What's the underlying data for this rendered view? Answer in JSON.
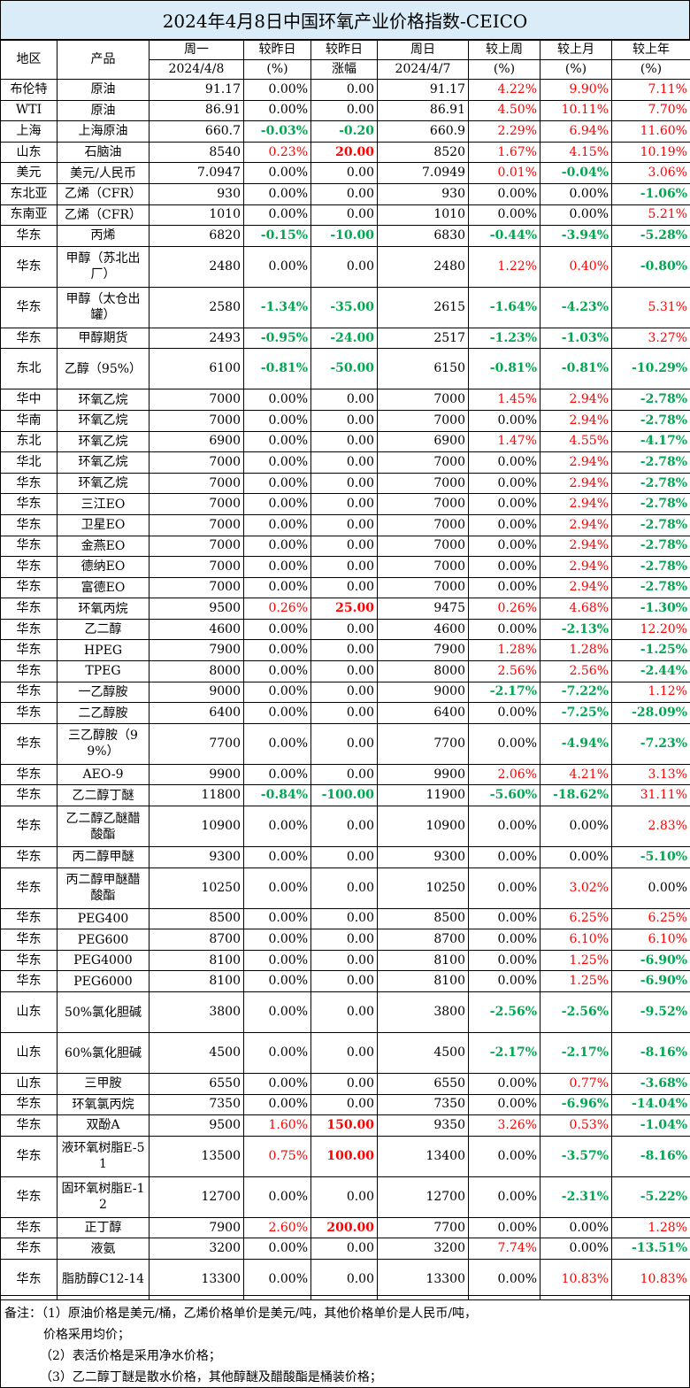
{
  "title": "2024年4月8日中国环氧产业价格指数-CEICO",
  "headers": {
    "region": "地区",
    "product": "产品",
    "mon_top": "周一",
    "mon_bottom": "2024/4/8",
    "chg_top": "较昨日",
    "chg_bottom": "(%)",
    "amt_top": "较昨日",
    "amt_bottom": "涨幅",
    "sun_top": "周日",
    "sun_bottom": "2024/4/7",
    "week_top": "较上周",
    "week_bottom": "(%)",
    "month_top": "较上月",
    "month_bottom": "(%)",
    "year_top": "较上年",
    "year_bottom": "(%)"
  },
  "colors": {
    "up": "#ff0000",
    "down": "#00a650",
    "title_bg": "#d9ecf7"
  },
  "rows": [
    {
      "region": "布伦特",
      "product": "原油",
      "mon": "91.17",
      "chg": "0.00%",
      "amt": "0.00",
      "sun": "91.17",
      "wk": "4.22%",
      "mo": "9.90%",
      "yr": "7.11%"
    },
    {
      "region": "WTI",
      "product": "原油",
      "mon": "86.91",
      "chg": "0.00%",
      "amt": "0.00",
      "sun": "86.91",
      "wk": "4.50%",
      "mo": "10.11%",
      "yr": "7.70%"
    },
    {
      "region": "上海",
      "product": "上海原油",
      "mon": "660.7",
      "chg": "-0.03%",
      "amt": "-0.20",
      "sun": "660.9",
      "wk": "2.29%",
      "mo": "6.94%",
      "yr": "11.60%"
    },
    {
      "region": "山东",
      "product": "石脑油",
      "mon": "8540",
      "chg": "0.23%",
      "amt": "20.00",
      "sun": "8520",
      "wk": "1.67%",
      "mo": "4.15%",
      "yr": "10.19%"
    },
    {
      "region": "美元",
      "product": "美元/人民币",
      "mon": "7.0947",
      "chg": "0.00%",
      "amt": "0.00",
      "sun": "7.0949",
      "wk": "0.01%",
      "mo": "-0.04%",
      "yr": "3.06%"
    },
    {
      "region": "东北亚",
      "product": "乙烯（CFR）",
      "mon": "930",
      "chg": "0.00%",
      "amt": "0.00",
      "sun": "930",
      "wk": "0.00%",
      "mo": "0.00%",
      "yr": "-1.06%"
    },
    {
      "region": "东南亚",
      "product": "乙烯（CFR）",
      "mon": "1010",
      "chg": "0.00%",
      "amt": "0.00",
      "sun": "1010",
      "wk": "0.00%",
      "mo": "0.00%",
      "yr": "5.21%"
    },
    {
      "region": "华东",
      "product": "丙烯",
      "mon": "6820",
      "chg": "-0.15%",
      "amt": "-10.00",
      "sun": "6830",
      "wk": "-0.44%",
      "mo": "-3.94%",
      "yr": "-5.28%"
    },
    {
      "region": "华东",
      "product": "甲醇（苏北出厂）",
      "mon": "2480",
      "chg": "0.00%",
      "amt": "0.00",
      "sun": "2480",
      "wk": "1.22%",
      "mo": "0.40%",
      "yr": "-0.80%"
    },
    {
      "region": "华东",
      "product": "甲醇（太仓出罐）",
      "mon": "2580",
      "chg": "-1.34%",
      "amt": "-35.00",
      "sun": "2615",
      "wk": "-1.64%",
      "mo": "-4.23%",
      "yr": "5.31%"
    },
    {
      "region": "华东",
      "product": "甲醇期货",
      "mon": "2493",
      "chg": "-0.95%",
      "amt": "-24.00",
      "sun": "2517",
      "wk": "-1.23%",
      "mo": "-1.03%",
      "yr": "3.27%"
    },
    {
      "region": "东北",
      "product": "乙醇（95%）",
      "mon": "6100",
      "chg": "-0.81%",
      "amt": "-50.00",
      "sun": "6150",
      "wk": "-0.81%",
      "mo": "-0.81%",
      "yr": "-10.29%"
    },
    {
      "region": "华中",
      "product": "环氧乙烷",
      "mon": "7000",
      "chg": "0.00%",
      "amt": "0.00",
      "sun": "7000",
      "wk": "1.45%",
      "mo": "2.94%",
      "yr": "-2.78%"
    },
    {
      "region": "华南",
      "product": "环氧乙烷",
      "mon": "7000",
      "chg": "0.00%",
      "amt": "0.00",
      "sun": "7000",
      "wk": "0.00%",
      "mo": "2.94%",
      "yr": "-2.78%"
    },
    {
      "region": "东北",
      "product": "环氧乙烷",
      "mon": "6900",
      "chg": "0.00%",
      "amt": "0.00",
      "sun": "6900",
      "wk": "1.47%",
      "mo": "4.55%",
      "yr": "-4.17%"
    },
    {
      "region": "华北",
      "product": "环氧乙烷",
      "mon": "7000",
      "chg": "0.00%",
      "amt": "0.00",
      "sun": "7000",
      "wk": "0.00%",
      "mo": "2.94%",
      "yr": "-2.78%"
    },
    {
      "region": "华东",
      "product": "环氧乙烷",
      "mon": "7000",
      "chg": "0.00%",
      "amt": "0.00",
      "sun": "7000",
      "wk": "0.00%",
      "mo": "2.94%",
      "yr": "-2.78%"
    },
    {
      "region": "华东",
      "product": "三江EO",
      "mon": "7000",
      "chg": "0.00%",
      "amt": "0.00",
      "sun": "7000",
      "wk": "0.00%",
      "mo": "2.94%",
      "yr": "-2.78%"
    },
    {
      "region": "华东",
      "product": "卫星EO",
      "mon": "7000",
      "chg": "0.00%",
      "amt": "0.00",
      "sun": "7000",
      "wk": "0.00%",
      "mo": "2.94%",
      "yr": "-2.78%"
    },
    {
      "region": "华东",
      "product": "金燕EO",
      "mon": "7000",
      "chg": "0.00%",
      "amt": "0.00",
      "sun": "7000",
      "wk": "0.00%",
      "mo": "2.94%",
      "yr": "-2.78%"
    },
    {
      "region": "华东",
      "product": "德纳EO",
      "mon": "7000",
      "chg": "0.00%",
      "amt": "0.00",
      "sun": "7000",
      "wk": "0.00%",
      "mo": "2.94%",
      "yr": "-2.78%"
    },
    {
      "region": "华东",
      "product": "富德EO",
      "mon": "7000",
      "chg": "0.00%",
      "amt": "0.00",
      "sun": "7000",
      "wk": "0.00%",
      "mo": "2.94%",
      "yr": "-2.78%"
    },
    {
      "region": "华东",
      "product": "环氧丙烷",
      "mon": "9500",
      "chg": "0.26%",
      "amt": "25.00",
      "sun": "9475",
      "wk": "0.26%",
      "mo": "4.68%",
      "yr": "-1.30%"
    },
    {
      "region": "华东",
      "product": "乙二醇",
      "mon": "4600",
      "chg": "0.00%",
      "amt": "0.00",
      "sun": "4600",
      "wk": "0.00%",
      "mo": "-2.13%",
      "yr": "12.20%"
    },
    {
      "region": "华东",
      "product": "HPEG",
      "mon": "7900",
      "chg": "0.00%",
      "amt": "0.00",
      "sun": "7900",
      "wk": "1.28%",
      "mo": "1.28%",
      "yr": "-1.25%"
    },
    {
      "region": "华东",
      "product": "TPEG",
      "mon": "8000",
      "chg": "0.00%",
      "amt": "0.00",
      "sun": "8000",
      "wk": "2.56%",
      "mo": "2.56%",
      "yr": "-2.44%"
    },
    {
      "region": "华东",
      "product": "一乙醇胺",
      "mon": "9000",
      "chg": "0.00%",
      "amt": "0.00",
      "sun": "9000",
      "wk": "-2.17%",
      "mo": "-7.22%",
      "yr": "1.12%"
    },
    {
      "region": "华东",
      "product": "二乙醇胺",
      "mon": "6400",
      "chg": "0.00%",
      "amt": "0.00",
      "sun": "6400",
      "wk": "0.00%",
      "mo": "-7.25%",
      "yr": "-28.09%"
    },
    {
      "region": "华东",
      "product": "三乙醇胺（99%）",
      "mon": "7700",
      "chg": "0.00%",
      "amt": "0.00",
      "sun": "7700",
      "wk": "0.00%",
      "mo": "-4.94%",
      "yr": "-7.23%"
    },
    {
      "region": "华东",
      "product": "AEO-9",
      "mon": "9900",
      "chg": "0.00%",
      "amt": "0.00",
      "sun": "9900",
      "wk": "2.06%",
      "mo": "4.21%",
      "yr": "3.13%"
    },
    {
      "region": "华东",
      "product": "乙二醇丁醚",
      "mon": "11800",
      "chg": "-0.84%",
      "amt": "-100.00",
      "sun": "11900",
      "wk": "-5.60%",
      "mo": "-18.62%",
      "yr": "31.11%"
    },
    {
      "region": "华东",
      "product": "乙二醇乙醚醋酸酯",
      "mon": "10900",
      "chg": "0.00%",
      "amt": "0.00",
      "sun": "10900",
      "wk": "0.00%",
      "mo": "0.00%",
      "yr": "2.83%"
    },
    {
      "region": "华东",
      "product": "丙二醇甲醚",
      "mon": "9300",
      "chg": "0.00%",
      "amt": "0.00",
      "sun": "9300",
      "wk": "0.00%",
      "mo": "0.00%",
      "yr": "-5.10%"
    },
    {
      "region": "华东",
      "product": "丙二醇甲醚醋酸酯",
      "mon": "10250",
      "chg": "0.00%",
      "amt": "0.00",
      "sun": "10250",
      "wk": "0.00%",
      "mo": "3.02%",
      "yr": "0.00%"
    },
    {
      "region": "华东",
      "product": "PEG400",
      "mon": "8500",
      "chg": "0.00%",
      "amt": "0.00",
      "sun": "8500",
      "wk": "0.00%",
      "mo": "6.25%",
      "yr": "6.25%"
    },
    {
      "region": "华东",
      "product": "PEG600",
      "mon": "8700",
      "chg": "0.00%",
      "amt": "0.00",
      "sun": "8700",
      "wk": "0.00%",
      "mo": "6.10%",
      "yr": "6.10%"
    },
    {
      "region": "华东",
      "product": "PEG4000",
      "mon": "8100",
      "chg": "0.00%",
      "amt": "0.00",
      "sun": "8100",
      "wk": "0.00%",
      "mo": "1.25%",
      "yr": "-6.90%"
    },
    {
      "region": "华东",
      "product": "PEG6000",
      "mon": "8100",
      "chg": "0.00%",
      "amt": "0.00",
      "sun": "8100",
      "wk": "0.00%",
      "mo": "1.25%",
      "yr": "-6.90%"
    },
    {
      "region": "山东",
      "product": "50%氯化胆碱",
      "mon": "3800",
      "chg": "0.00%",
      "amt": "0.00",
      "sun": "3800",
      "wk": "-2.56%",
      "mo": "-2.56%",
      "yr": "-9.52%"
    },
    {
      "region": "山东",
      "product": "60%氯化胆碱",
      "mon": "4500",
      "chg": "0.00%",
      "amt": "0.00",
      "sun": "4500",
      "wk": "-2.17%",
      "mo": "-2.17%",
      "yr": "-8.16%"
    },
    {
      "region": "山东",
      "product": "三甲胺",
      "mon": "6550",
      "chg": "0.00%",
      "amt": "0.00",
      "sun": "6550",
      "wk": "0.00%",
      "mo": "0.77%",
      "yr": "-3.68%"
    },
    {
      "region": "华东",
      "product": "环氧氯丙烷",
      "mon": "7350",
      "chg": "0.00%",
      "amt": "0.00",
      "sun": "7350",
      "wk": "0.00%",
      "mo": "-6.96%",
      "yr": "-14.04%"
    },
    {
      "region": "华东",
      "product": "双酚A",
      "mon": "9500",
      "chg": "1.60%",
      "amt": "150.00",
      "sun": "9350",
      "wk": "3.26%",
      "mo": "0.53%",
      "yr": "-1.04%"
    },
    {
      "region": "华东",
      "product": "液环氧树脂E-51",
      "mon": "13500",
      "chg": "0.75%",
      "amt": "100.00",
      "sun": "13400",
      "wk": "0.00%",
      "mo": "-3.57%",
      "yr": "-8.16%"
    },
    {
      "region": "华东",
      "product": "固环氧树脂E-12",
      "mon": "12700",
      "chg": "0.00%",
      "amt": "0.00",
      "sun": "12700",
      "wk": "0.00%",
      "mo": "-2.31%",
      "yr": "-5.22%"
    },
    {
      "region": "华东",
      "product": "正丁醇",
      "mon": "7900",
      "chg": "2.60%",
      "amt": "200.00",
      "sun": "7700",
      "wk": "0.00%",
      "mo": "0.00%",
      "yr": "1.28%"
    },
    {
      "region": "华东",
      "product": "液氨",
      "mon": "3200",
      "chg": "0.00%",
      "amt": "0.00",
      "sun": "3200",
      "wk": "7.74%",
      "mo": "0.00%",
      "yr": "-13.51%"
    },
    {
      "region": "华东",
      "product": "脂肪醇C12-14",
      "mon": "13300",
      "chg": "0.00%",
      "amt": "0.00",
      "sun": "13300",
      "wk": "0.00%",
      "mo": "10.83%",
      "yr": "10.83%"
    }
  ],
  "notes": [
    "备注：（1）原油价格是美元/桶，乙烯价格单价是美元/吨，其他价格单价是人民币/吨，",
    "价格采用均价；",
    "（2）表活价格是采用净水价格；",
    "（3）乙二醇丁醚是散水价格，其他醇醚及醋酸酯是桶装价格；"
  ]
}
